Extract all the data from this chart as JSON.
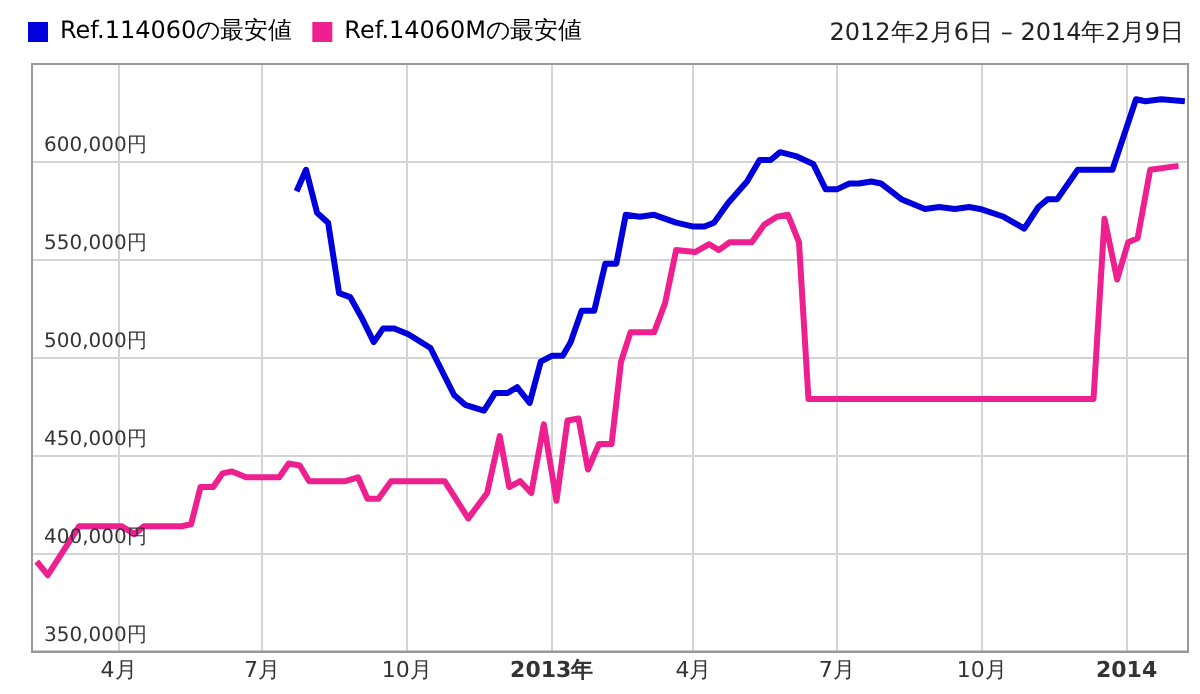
{
  "chart_data": {
    "type": "line",
    "subtitle": "2012年2月6日 – 2014年2月9日",
    "legend": "top left",
    "grid": true,
    "marker": "none",
    "line_style": "solid",
    "xlim": [
      "2012-02-06",
      "2014-02-09"
    ],
    "xticks": [
      {
        "value": "2012-04-01",
        "label": "4月"
      },
      {
        "value": "2012-07-01",
        "label": "7月"
      },
      {
        "value": "2012-10-01",
        "label": "10月"
      },
      {
        "value": "2013-01-01",
        "label": "2013年"
      },
      {
        "value": "2013-04-01",
        "label": "4月"
      },
      {
        "value": "2013-07-01",
        "label": "7月"
      },
      {
        "value": "2013-10-01",
        "label": "10月"
      },
      {
        "value": "2014-01-01",
        "label": "2014"
      }
    ],
    "ylim": [
      350000,
      650000
    ],
    "yticks": [
      {
        "value": 350000,
        "label": "350,000円"
      },
      {
        "value": 400000,
        "label": "400,000円"
      },
      {
        "value": 450000,
        "label": "450,000円"
      },
      {
        "value": 500000,
        "label": "500,000円"
      },
      {
        "value": 550000,
        "label": "550,000円"
      },
      {
        "value": 600000,
        "label": "600,000円"
      }
    ],
    "series": [
      {
        "name": "Ref.114060の最安値",
        "color": "#0000dd",
        "x": [
          "2012-07-23",
          "2012-07-29",
          "2012-08-05",
          "2012-08-12",
          "2012-08-19",
          "2012-08-26",
          "2012-09-02",
          "2012-09-10",
          "2012-09-16",
          "2012-09-23",
          "2012-10-02",
          "2012-10-16",
          "2012-10-31",
          "2012-11-07",
          "2012-11-19",
          "2012-11-26",
          "2012-12-04",
          "2012-12-10",
          "2012-12-18",
          "2012-12-25",
          "2013-01-01",
          "2013-01-08",
          "2013-01-13",
          "2013-01-20",
          "2013-01-28",
          "2013-02-04",
          "2013-02-11",
          "2013-02-17",
          "2013-02-26",
          "2013-03-07",
          "2013-03-21",
          "2013-04-01",
          "2013-04-08",
          "2013-04-14",
          "2013-04-23",
          "2013-05-05",
          "2013-05-13",
          "2013-05-20",
          "2013-05-26",
          "2013-06-05",
          "2013-06-16",
          "2013-06-24",
          "2013-07-01",
          "2013-07-09",
          "2013-07-15",
          "2013-07-23",
          "2013-07-29",
          "2013-08-11",
          "2013-08-26",
          "2013-09-04",
          "2013-09-14",
          "2013-09-23",
          "2013-09-30",
          "2013-10-15",
          "2013-10-28",
          "2013-11-06",
          "2013-11-12",
          "2013-11-18",
          "2013-12-01",
          "2013-12-23",
          "2014-01-07",
          "2014-01-13",
          "2014-01-23",
          "2014-02-07"
        ],
        "values": [
          585000,
          596000,
          574000,
          569000,
          533000,
          531000,
          521000,
          508000,
          515000,
          515000,
          512000,
          505000,
          481000,
          476000,
          473000,
          482000,
          482000,
          485000,
          477000,
          498000,
          501000,
          501000,
          508000,
          524000,
          524000,
          548000,
          548000,
          573000,
          572000,
          573000,
          569000,
          567000,
          567000,
          569000,
          579000,
          590000,
          601000,
          601000,
          605000,
          603000,
          599000,
          586000,
          586000,
          589000,
          589000,
          590000,
          589000,
          581000,
          576000,
          577000,
          576000,
          577000,
          576000,
          572000,
          566000,
          577000,
          581000,
          581000,
          596000,
          596000,
          632000,
          631000,
          632000,
          631000
        ]
      },
      {
        "name": "Ref.14060Mの最安値",
        "color": "#ee1f8f",
        "x": [
          "2012-02-09",
          "2012-02-16",
          "2012-03-07",
          "2012-04-03",
          "2012-04-11",
          "2012-04-17",
          "2012-05-11",
          "2012-05-17",
          "2012-05-23",
          "2012-05-31",
          "2012-06-06",
          "2012-06-12",
          "2012-06-21",
          "2012-07-12",
          "2012-07-18",
          "2012-07-25",
          "2012-07-31",
          "2012-08-23",
          "2012-08-31",
          "2012-09-06",
          "2012-09-13",
          "2012-09-21",
          "2012-10-25",
          "2012-11-09",
          "2012-11-21",
          "2012-11-29",
          "2012-12-05",
          "2012-12-12",
          "2012-12-19",
          "2012-12-27",
          "2013-01-04",
          "2013-01-11",
          "2013-01-18",
          "2013-01-24",
          "2013-01-31",
          "2013-02-08",
          "2013-02-14",
          "2013-02-20",
          "2013-03-07",
          "2013-03-14",
          "2013-03-21",
          "2013-04-02",
          "2013-04-11",
          "2013-04-17",
          "2013-04-24",
          "2013-05-08",
          "2013-05-16",
          "2013-05-24",
          "2013-05-31",
          "2013-06-07",
          "2013-06-13",
          "2013-12-11",
          "2013-12-18",
          "2013-12-26",
          "2014-01-02",
          "2014-01-08",
          "2014-01-16",
          "2014-02-03"
        ],
        "values": [
          396000,
          389000,
          414000,
          414000,
          410000,
          414000,
          414000,
          415000,
          434000,
          434000,
          441000,
          442000,
          439000,
          439000,
          446000,
          445000,
          437000,
          437000,
          439000,
          428000,
          428000,
          437000,
          437000,
          418000,
          431000,
          460000,
          434000,
          437000,
          431000,
          466000,
          427000,
          468000,
          469000,
          443000,
          456000,
          456000,
          498000,
          513000,
          513000,
          528000,
          555000,
          554000,
          558000,
          555000,
          559000,
          559000,
          568000,
          572000,
          573000,
          559000,
          479000,
          479000,
          571000,
          540000,
          559000,
          561000,
          596000,
          598000
        ]
      }
    ]
  }
}
